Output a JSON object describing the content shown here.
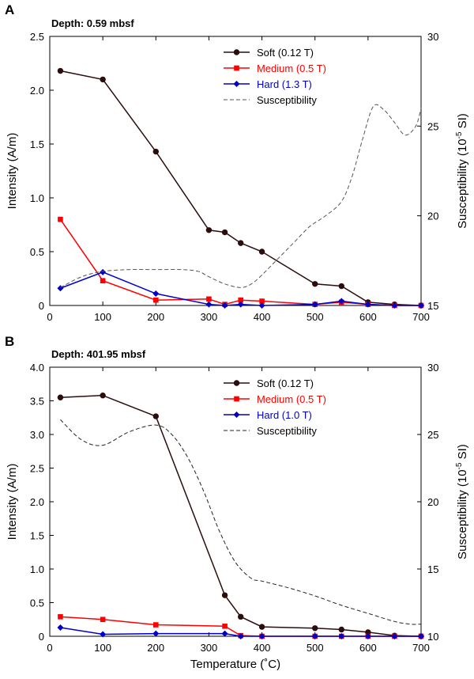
{
  "chart_data": [
    {
      "type": "line",
      "panel_label": "A",
      "title": "Depth: 0.59 mbsf",
      "xlabel": "",
      "ylabel": "Intensity (A/m)",
      "y2label_main": "Susceptibility (10",
      "y2label_sup": "-5",
      "y2label_tail": " SI)",
      "xlim": [
        0,
        700
      ],
      "ylim": [
        0,
        2.5
      ],
      "y2lim": [
        15,
        30
      ],
      "xticks": [
        "0",
        "100",
        "200",
        "300",
        "400",
        "500",
        "600",
        "700"
      ],
      "yticks": [
        "0",
        "0.5",
        "1.0",
        "1.5",
        "2.0",
        "2.5"
      ],
      "y2ticks": [
        "15",
        "20",
        "25",
        "30"
      ],
      "legend_position": "top-right",
      "grid": false,
      "series": [
        {
          "name": "Soft (0.12 T)",
          "color": "#2b0d0d",
          "marker": "circle",
          "x": [
            20,
            100,
            200,
            300,
            330,
            360,
            400,
            500,
            550,
            600,
            650,
            700
          ],
          "values": [
            2.18,
            2.1,
            1.43,
            0.7,
            0.68,
            0.58,
            0.5,
            0.2,
            0.18,
            0.03,
            0.01,
            0.0
          ]
        },
        {
          "name": "Medium (0.5 T)",
          "color": "#ff0000",
          "marker": "square",
          "x": [
            20,
            100,
            200,
            300,
            330,
            360,
            400,
            500,
            550,
            600,
            650,
            700
          ],
          "values": [
            0.8,
            0.23,
            0.05,
            0.06,
            0.01,
            0.05,
            0.04,
            0.01,
            0.03,
            0.01,
            0.0,
            0.0
          ]
        },
        {
          "name": "Hard (1.3 T)",
          "color": "#0000cc",
          "marker": "diamond",
          "x": [
            20,
            100,
            200,
            300,
            330,
            360,
            400,
            500,
            550,
            600,
            650,
            700
          ],
          "values": [
            0.16,
            0.31,
            0.11,
            0.01,
            0.0,
            0.01,
            0.0,
            0.01,
            0.04,
            0.01,
            0.0,
            0.0
          ]
        },
        {
          "name": "Susceptibility",
          "color": "#555555",
          "dashed": true,
          "axis": "right",
          "x": [
            20,
            60,
            100,
            150,
            200,
            250,
            280,
            300,
            330,
            360,
            380,
            400,
            430,
            460,
            490,
            520,
            550,
            570,
            590,
            610,
            630,
            650,
            670,
            690,
            700
          ],
          "values": [
            16.0,
            16.6,
            16.9,
            17.0,
            17.0,
            17.0,
            16.9,
            16.6,
            16.2,
            16.0,
            16.2,
            16.7,
            17.6,
            18.5,
            19.4,
            20.0,
            20.8,
            22.2,
            24.3,
            26.1,
            25.9,
            25.2,
            24.5,
            25.0,
            26.0
          ]
        }
      ]
    },
    {
      "type": "line",
      "panel_label": "B",
      "title": "Depth: 401.95 mbsf",
      "xlabel": "Temperature (˚C)",
      "ylabel": "Intensity (A/m)",
      "y2label_main": "Susceptibility (10",
      "y2label_sup": "-5",
      "y2label_tail": " SI)",
      "xlim": [
        0,
        700
      ],
      "ylim": [
        0,
        4.0
      ],
      "y2lim": [
        10,
        30
      ],
      "xticks": [
        "0",
        "100",
        "200",
        "300",
        "400",
        "500",
        "600",
        "700"
      ],
      "yticks": [
        "0",
        "0.5",
        "1.0",
        "1.5",
        "2.0",
        "2.5",
        "3.0",
        "3.5",
        "4.0"
      ],
      "y2ticks": [
        "10",
        "15",
        "20",
        "25",
        "30"
      ],
      "legend_position": "top-right",
      "grid": false,
      "series": [
        {
          "name": "Soft (0.12 T)",
          "color": "#2b0d0d",
          "marker": "circle",
          "x": [
            20,
            100,
            200,
            330,
            360,
            400,
            500,
            550,
            600,
            650,
            700
          ],
          "values": [
            3.55,
            3.58,
            3.27,
            0.61,
            0.29,
            0.14,
            0.12,
            0.1,
            0.06,
            0.01,
            0.0
          ]
        },
        {
          "name": "Medium (0.5 T)",
          "color": "#ff0000",
          "marker": "square",
          "x": [
            20,
            100,
            200,
            330,
            360,
            400,
            500,
            550,
            600,
            650,
            700
          ],
          "values": [
            0.29,
            0.25,
            0.17,
            0.15,
            0.01,
            0.0,
            0.0,
            0.0,
            0.0,
            0.0,
            0.0
          ]
        },
        {
          "name": "Hard (1.0 T)",
          "color": "#0000cc",
          "marker": "diamond",
          "x": [
            20,
            100,
            200,
            330,
            360,
            400,
            500,
            550,
            600,
            650,
            700
          ],
          "values": [
            0.13,
            0.03,
            0.04,
            0.04,
            0.0,
            0.0,
            0.0,
            0.0,
            0.0,
            0.0,
            0.0
          ]
        },
        {
          "name": "Susceptibility",
          "color": "#222222",
          "dashed": true,
          "axis": "right",
          "x": [
            20,
            60,
            100,
            150,
            200,
            230,
            260,
            290,
            320,
            350,
            380,
            400,
            450,
            500,
            550,
            600,
            650,
            680,
            700
          ],
          "values": [
            26.1,
            24.6,
            24.2,
            25.2,
            25.7,
            25.0,
            23.3,
            20.8,
            17.8,
            15.5,
            14.3,
            14.1,
            13.6,
            13.0,
            12.3,
            11.7,
            11.1,
            10.9,
            10.9
          ]
        }
      ]
    }
  ]
}
